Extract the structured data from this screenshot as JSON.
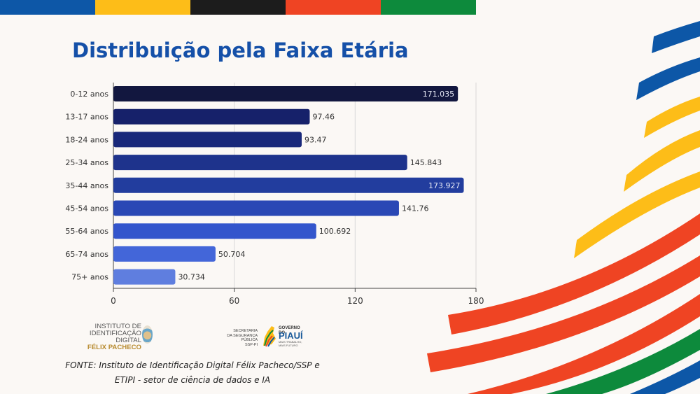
{
  "colors": {
    "topbar": [
      "#0d57a7",
      "#fdbd18",
      "#1c1c1c",
      "#ef4423",
      "#0d8a3c"
    ]
  },
  "title": "Distribuição pela Faixa Etária",
  "chart_data": {
    "type": "bar",
    "orientation": "horizontal",
    "categories": [
      "0-12 anos",
      "13-17 anos",
      "18-24 anos",
      "25-34 anos",
      "35-44 anos",
      "45-54 anos",
      "55-64 anos",
      "65-74 anos",
      "75+ anos"
    ],
    "values": [
      171.035,
      97.46,
      93.47,
      145.843,
      173.927,
      141.76,
      100.692,
      50.704,
      30.734
    ],
    "value_labels": [
      "171.035",
      "97.46",
      "93.47",
      "145.843",
      "173.927",
      "141.76",
      "100.692",
      "50.704",
      "30.734"
    ],
    "xlim": [
      0,
      180
    ],
    "xticks": [
      0,
      60,
      120,
      180
    ],
    "grid": true,
    "bar_colors": [
      "#12173f",
      "#16216a",
      "#19287a",
      "#1e338c",
      "#223d9e",
      "#2a48b5",
      "#3355cc",
      "#4366d9",
      "#5f7edf"
    ],
    "label_inside_color": "#e6e9f5"
  },
  "logos": {
    "iid": {
      "line1": "INSTITUTO DE",
      "line2": "IDENTIFICAÇÃO DIGITAL",
      "line3": "FÉLIX PACHECO"
    },
    "ssp": {
      "line1": "SECRETARIA",
      "line2": "DA SEGURANÇA PÚBLICA",
      "line3": "SSP-PI"
    },
    "gov": {
      "line1": "GOVERNO DO",
      "line2": "PIAUÍ",
      "line3": "MAIS TRABALHO, MAIS FUTURO"
    }
  },
  "source": {
    "line1": "FONTE:  Instituto de Identificação Digital Félix Pacheco/SSP e",
    "line2": "ETIPI - setor de ciência de dados e IA"
  }
}
